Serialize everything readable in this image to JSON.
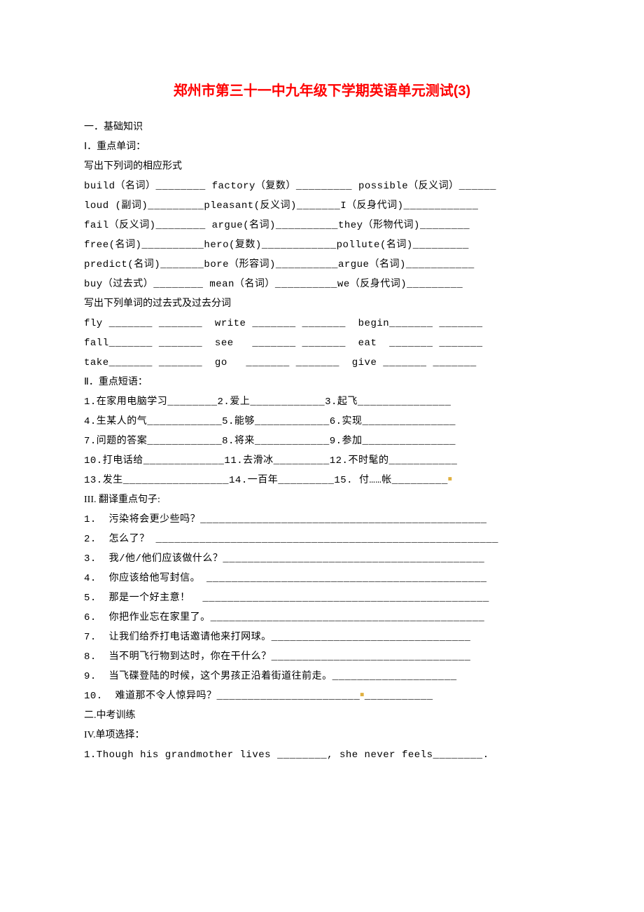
{
  "title": "郑州市第三十一中九年级下学期英语单元测试(3)",
  "section1_heading": "一．基础知识",
  "s1_label": "Ⅰ．重点单词：",
  "s1_sub1": "写出下列词的相应形式",
  "s1_line1": "build（名词）________ factory（复数）_________ possible（反义词）______",
  "s1_line2": "loud (副词)_________pleasant(反义词)_______I（反身代词)____________",
  "s1_line3": "fail（反义词)________ argue(名词)__________they（形物代词)________",
  "s1_line4": "free(名词)__________hero(复数)____________pollute(名词)_________",
  "s1_line5": "predict(名词)_______bore（形容词)__________argue（名词)___________",
  "s1_line6": "buy（过去式）________ mean（名词）__________we（反身代词)_________",
  "s1_sub2": "写出下列单词的过去式及过去分词",
  "s1_line7": "fly _______ _______  write _______ _______  begin_______ _______",
  "s1_line8": "fall_______ _______  see   _______ _______  eat  _______ _______",
  "s1_line9": "take_______ _______  go   _______ _______  give _______ _______",
  "s2_label": "Ⅱ．重点短语：",
  "s2_line1": "1.在家用电脑学习________2.爱上____________3.起飞_______________",
  "s2_line2": "4.生某人的气____________5.能够____________6.实现_______________",
  "s2_line3": "7.问题的答案____________8.将来____________9.参加_______________",
  "s2_line4": "10.打电话给_____________11.去滑冰_________12.不时髦的___________",
  "s2_line5_a": "13.发生_________________14.一百年_________15. 付……帐_________",
  "s3_label": "III. 翻译重点句子:",
  "s3_q1": "1.  污染将会更少些吗？______________________________________________",
  "s3_q2": "2.  怎么了？ _______________________________________________________",
  "s3_q3": "3.  我/他/他们应该做什么？__________________________________________",
  "s3_q4": "4.  你应该给他写封信。 _____________________________________________",
  "s3_q5": "5.  那是一个好主意！  ______________________________________________",
  "s3_q6": "6.  你把作业忘在家里了。____________________________________________",
  "s3_q7": "7.  让我们给乔打电话邀请他来打网球。________________________________",
  "s3_q8": "8.  当不明飞行物到达时，你在干什么？________________________________",
  "s3_q9": "9.  当飞碟登陆的时候，这个男孩正沿着街道往前走。____________________",
  "s3_q10_a": "10.  难道那不令人惊异吗？_______________________",
  "s3_q10_b": "___________",
  "section2_heading": "二.中考训练",
  "s4_label": "IV.单项选择：",
  "s4_q1": "1.Though his grandmother lives ________, she never feels________."
}
